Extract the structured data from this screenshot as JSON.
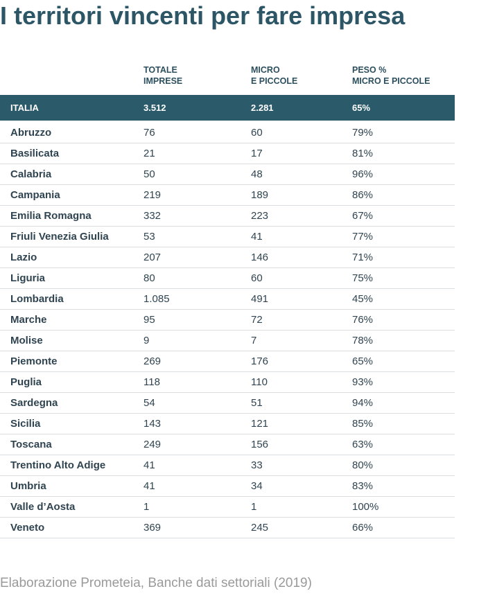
{
  "title": "I territori vincenti per fare impresa",
  "columns": [
    {
      "line1": "",
      "line2": ""
    },
    {
      "line1": "TOTALE",
      "line2": "IMPRESE"
    },
    {
      "line1": "MICRO",
      "line2": "E PICCOLE"
    },
    {
      "line1": "PESO %",
      "line2": "MICRO E PICCOLE"
    }
  ],
  "total": {
    "region": "ITALIA",
    "totale": "3.512",
    "micro": "2.281",
    "peso": "65%"
  },
  "rows": [
    {
      "region": "Abruzzo",
      "totale": "76",
      "micro": "60",
      "peso": "79%"
    },
    {
      "region": "Basilicata",
      "totale": "21",
      "micro": "17",
      "peso": "81%"
    },
    {
      "region": "Calabria",
      "totale": "50",
      "micro": "48",
      "peso": "96%"
    },
    {
      "region": "Campania",
      "totale": "219",
      "micro": "189",
      "peso": "86%"
    },
    {
      "region": "Emilia Romagna",
      "totale": "332",
      "micro": "223",
      "peso": "67%"
    },
    {
      "region": "Friuli Venezia Giulia",
      "totale": "53",
      "micro": "41",
      "peso": "77%"
    },
    {
      "region": "Lazio",
      "totale": "207",
      "micro": "146",
      "peso": "71%"
    },
    {
      "region": "Liguria",
      "totale": "80",
      "micro": "60",
      "peso": "75%"
    },
    {
      "region": "Lombardia",
      "totale": "1.085",
      "micro": "491",
      "peso": "45%"
    },
    {
      "region": "Marche",
      "totale": "95",
      "micro": "72",
      "peso": "76%"
    },
    {
      "region": "Molise",
      "totale": "9",
      "micro": "7",
      "peso": "78%"
    },
    {
      "region": "Piemonte",
      "totale": "269",
      "micro": "176",
      "peso": "65%"
    },
    {
      "region": "Puglia",
      "totale": "118",
      "micro": "110",
      "peso": "93%"
    },
    {
      "region": "Sardegna",
      "totale": "54",
      "micro": "51",
      "peso": "94%"
    },
    {
      "region": "Sicilia",
      "totale": "143",
      "micro": "121",
      "peso": "85%"
    },
    {
      "region": "Toscana",
      "totale": "249",
      "micro": "156",
      "peso": "63%"
    },
    {
      "region": "Trentino Alto Adige",
      "totale": "41",
      "micro": "33",
      "peso": "80%"
    },
    {
      "region": "Umbria",
      "totale": "41",
      "micro": "34",
      "peso": "83%"
    },
    {
      "region": "Valle d’Aosta",
      "totale": "1",
      "micro": "1",
      "peso": "100%"
    },
    {
      "region": "Veneto",
      "totale": "369",
      "micro": "245",
      "peso": "66%"
    }
  ],
  "source": "Elaborazione Prometeia, Banche dati settoriali (2019)",
  "colors": {
    "title": "#2c5566",
    "total_row_bg": "#2b5a6b",
    "source_text": "#9a9a9a"
  }
}
